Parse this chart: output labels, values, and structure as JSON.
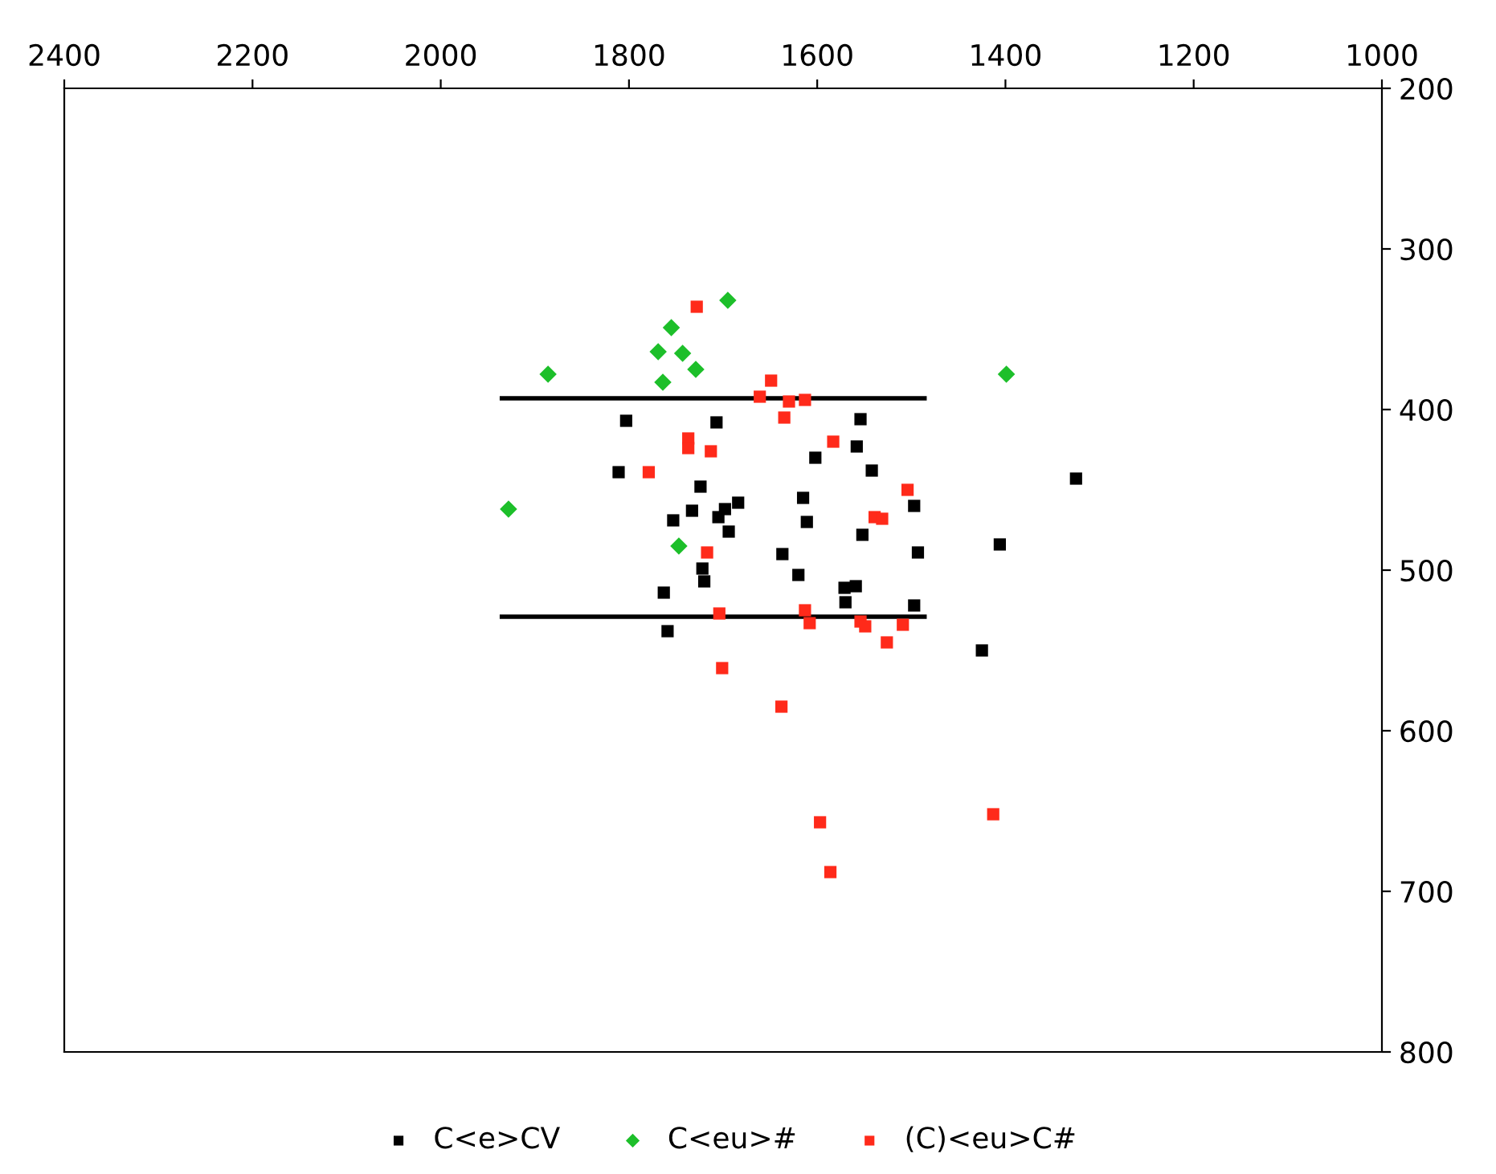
{
  "chart_data": {
    "type": "scatter",
    "xlim": [
      2400,
      1000
    ],
    "ylim": [
      800,
      200
    ],
    "xticks": [
      2400,
      2200,
      2000,
      1800,
      1600,
      1400,
      1200,
      1000
    ],
    "yticks": [
      200,
      300,
      400,
      500,
      600,
      700,
      800
    ],
    "grid": false,
    "legend": "bottom",
    "series": [
      {
        "name": "C<e>CV",
        "color": "#000000",
        "marker": "square",
        "x": [
          1803,
          1707,
          1554,
          1558,
          1602,
          1811,
          1542,
          1724,
          1615,
          1684,
          1698,
          1705,
          1733,
          1753,
          1611,
          1497,
          1694,
          1552,
          1637,
          1493,
          1722,
          1720,
          1620,
          1763,
          1571,
          1559,
          1570,
          1497,
          1759,
          1425,
          1406,
          1325
        ],
        "values": [
          407,
          408,
          406,
          423,
          430,
          439,
          438,
          448,
          455,
          458,
          462,
          467,
          463,
          469,
          470,
          460,
          476,
          478,
          490,
          489,
          499,
          507,
          503,
          514,
          511,
          510,
          520,
          522,
          538,
          550,
          484,
          443
        ]
      },
      {
        "name": "C<eu>#",
        "color": "#1dbf2a",
        "marker": "diamond",
        "x": [
          1695,
          1755,
          1769,
          1743,
          1729,
          1886,
          1764,
          1928,
          1747,
          1399
        ],
        "values": [
          332,
          349,
          364,
          365,
          375,
          378,
          383,
          462,
          485,
          378
        ]
      },
      {
        "name": "(C)<eu>C#",
        "color": "#ff2a1a",
        "marker": "square",
        "x": [
          1728,
          1649,
          1661,
          1630,
          1613,
          1635,
          1737,
          1737,
          1713,
          1583,
          1779,
          1504,
          1539,
          1531,
          1717,
          1704,
          1613,
          1608,
          1554,
          1549,
          1509,
          1526,
          1701,
          1638,
          1597,
          1586,
          1413
        ],
        "values": [
          336,
          382,
          392,
          395,
          394,
          405,
          418,
          424,
          426,
          420,
          439,
          450,
          467,
          468,
          489,
          527,
          525,
          533,
          532,
          535,
          534,
          545,
          561,
          585,
          657,
          688,
          652
        ]
      },
      {
        "type": "line",
        "color": "#000000",
        "marker": "none",
        "x": [
          1935,
          1486
        ],
        "values": [
          393,
          393
        ]
      },
      {
        "type": "line",
        "color": "#000000",
        "marker": "none",
        "x": [
          1935,
          1486
        ],
        "values": [
          529,
          529
        ]
      }
    ]
  }
}
